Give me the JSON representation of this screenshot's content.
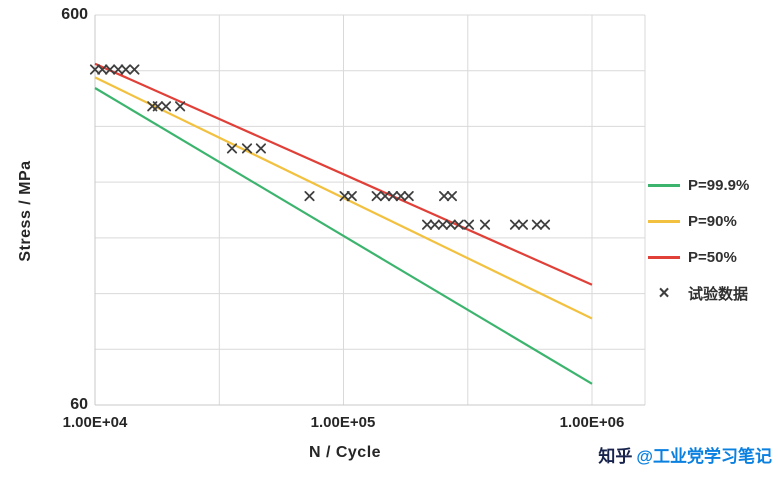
{
  "chart_data": {
    "type": "line+scatter",
    "title": "",
    "xlabel": "N / Cycle",
    "ylabel": "Stress / MPa",
    "x_scale": "log",
    "y_scale": "log",
    "xlim": [
      10000,
      1000000
    ],
    "ylim": [
      60,
      600
    ],
    "x_ticks": [
      {
        "value": 10000,
        "label": "1.00E+04"
      },
      {
        "value": 100000,
        "label": "1.00E+05"
      },
      {
        "value": 1000000,
        "label": "1.00E+06"
      }
    ],
    "y_ticks": [
      {
        "value": 600,
        "label": "600"
      },
      {
        "value": 60,
        "label": "60"
      }
    ],
    "grid": {
      "on": true,
      "color": "#d9d9d9",
      "h_lines": 8,
      "v_lines_at": [
        10000,
        31623,
        100000,
        316228,
        1000000
      ]
    },
    "legend_position": "right",
    "series": [
      {
        "name": "P=99.9%",
        "color": "#3cb46e",
        "points": [
          [
            10000,
            390
          ],
          [
            1000000,
            68
          ]
        ]
      },
      {
        "name": "P=90%",
        "color": "#f2c140",
        "points": [
          [
            10000,
            415
          ],
          [
            1000000,
            100
          ]
        ]
      },
      {
        "name": "P=50%",
        "color": "#e04038",
        "points": [
          [
            10000,
            450
          ],
          [
            1000000,
            122
          ]
        ]
      }
    ],
    "scatter": {
      "name": "试验数据",
      "marker": "x",
      "marker_glyph": "×",
      "color": "#3f3f3f",
      "points": [
        [
          10000,
          435
        ],
        [
          10700,
          435
        ],
        [
          11500,
          435
        ],
        [
          12400,
          435
        ],
        [
          13300,
          435
        ],
        [
          14400,
          435
        ],
        [
          17000,
          350
        ],
        [
          17900,
          350
        ],
        [
          19300,
          350
        ],
        [
          22000,
          350
        ],
        [
          35600,
          273
        ],
        [
          40900,
          273
        ],
        [
          46500,
          273
        ],
        [
          73000,
          206
        ],
        [
          101000,
          206
        ],
        [
          108000,
          206
        ],
        [
          136000,
          206
        ],
        [
          147000,
          206
        ],
        [
          158000,
          206
        ],
        [
          170000,
          206
        ],
        [
          183000,
          206
        ],
        [
          254000,
          206
        ],
        [
          273000,
          206
        ],
        [
          217000,
          174
        ],
        [
          233000,
          174
        ],
        [
          251000,
          174
        ],
        [
          270000,
          174
        ],
        [
          291000,
          174
        ],
        [
          320000,
          174
        ],
        [
          371000,
          174
        ],
        [
          490000,
          174
        ],
        [
          527000,
          174
        ],
        [
          600000,
          174
        ],
        [
          647000,
          174
        ]
      ]
    }
  },
  "watermark": {
    "brand": "知乎",
    "handle": "@工业党学习笔记"
  }
}
